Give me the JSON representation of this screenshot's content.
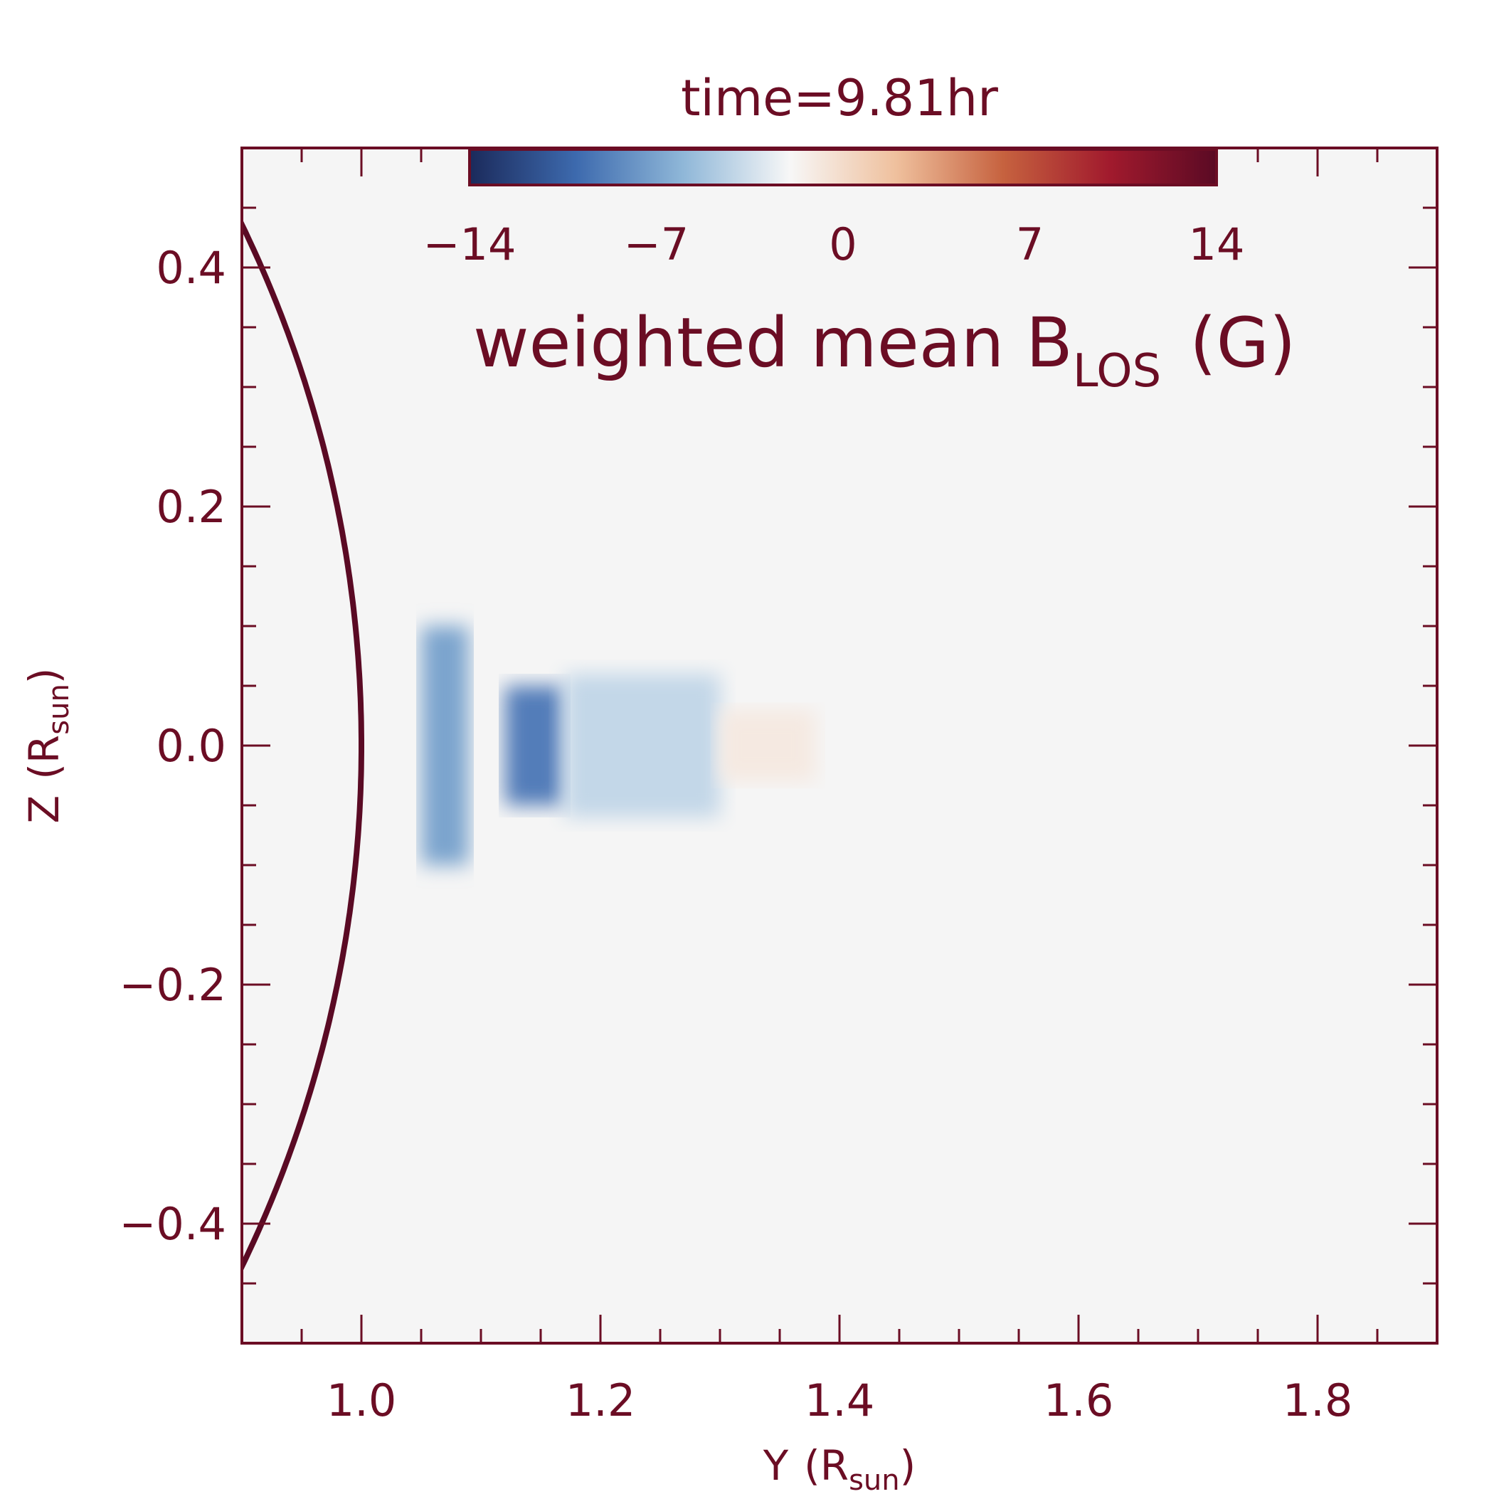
{
  "chart_data": {
    "type": "heatmap",
    "title": "time=9.81hr",
    "xlabel": {
      "main": "Y",
      "unit": "R",
      "unit_sub": "sun"
    },
    "ylabel": {
      "main": "Z",
      "unit": "R",
      "unit_sub": "sun"
    },
    "xlim": [
      0.9,
      1.9
    ],
    "ylim": [
      -0.5,
      0.5
    ],
    "x_ticks": [
      1.0,
      1.2,
      1.4,
      1.6,
      1.8
    ],
    "x_tick_labels": [
      "1.0",
      "1.2",
      "1.4",
      "1.6",
      "1.8"
    ],
    "y_ticks": [
      -0.4,
      -0.2,
      0.0,
      0.2,
      0.4
    ],
    "y_tick_labels": [
      "−0.4",
      "−0.2",
      "0.0",
      "0.2",
      "0.4"
    ],
    "colorbar": {
      "label_main": "weighted mean B",
      "label_sub": "LOS",
      "label_unit": "(G)",
      "range": [
        -14,
        14
      ],
      "ticks": [
        -14,
        -7,
        0,
        7,
        14
      ],
      "tick_labels": [
        "−14",
        "−7",
        "0",
        "7",
        "14"
      ],
      "colormap": [
        "#1b2a5b",
        "#3d6aae",
        "#8fb7d8",
        "#f7f7f7",
        "#efc09d",
        "#c6623f",
        "#a11a2d",
        "#5a0a24"
      ]
    },
    "limb_circle": {
      "center": [
        0,
        0
      ],
      "radius": 1.0
    },
    "background_value": 0,
    "field_feature": {
      "description_values": [
        {
          "y_range": [
            1.05,
            1.09
          ],
          "z_range": [
            -0.1,
            0.1
          ],
          "value": -7
        },
        {
          "y_range": [
            1.12,
            1.17
          ],
          "z_range": [
            -0.05,
            0.05
          ],
          "value": -9
        },
        {
          "y_range": [
            1.17,
            1.3
          ],
          "z_range": [
            -0.06,
            0.06
          ],
          "value": -4
        },
        {
          "y_range": [
            1.3,
            1.38
          ],
          "z_range": [
            -0.03,
            0.03
          ],
          "value": -1
        }
      ]
    },
    "colors": {
      "axis": "#6b0d24",
      "background": "#f5f5f5"
    }
  }
}
